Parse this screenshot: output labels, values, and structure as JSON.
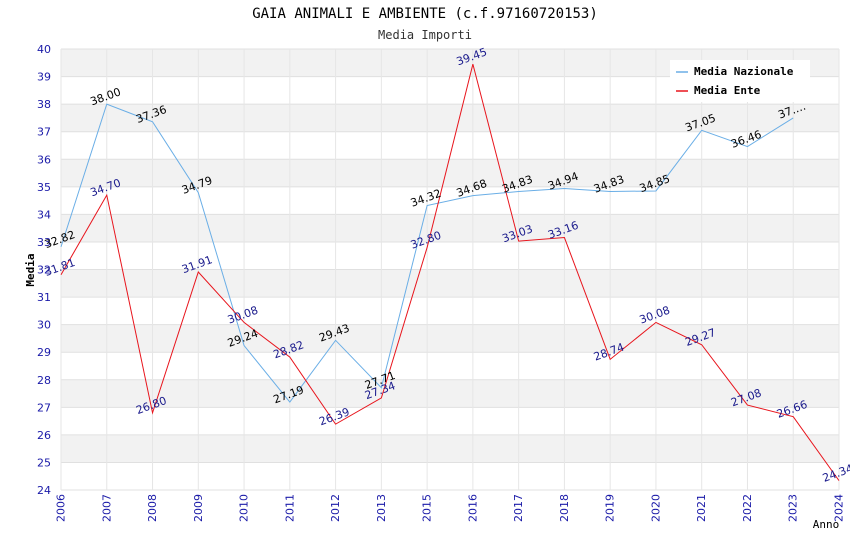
{
  "chart_data": {
    "type": "line",
    "title": "GAIA ANIMALI E AMBIENTE (c.f.97160720153)",
    "subtitle": "Media Importi",
    "xlabel": "Anno",
    "ylabel": "Media",
    "ylim": [
      24,
      40
    ],
    "yticks": [
      "24",
      "25",
      "26",
      "27",
      "28",
      "29",
      "30",
      "31",
      "32",
      "33",
      "34",
      "35",
      "36",
      "37",
      "38",
      "39",
      "40"
    ],
    "categories": [
      "2006",
      "2007",
      "2008",
      "2009",
      "2010",
      "2011",
      "2012",
      "2013",
      "2015",
      "2016",
      "2017",
      "2018",
      "2019",
      "2020",
      "2021",
      "2022",
      "2023",
      "2024"
    ],
    "grid": true,
    "legend_position": "top-right",
    "series": [
      {
        "name": "Media Nazionale",
        "color": "#6aaee6",
        "label_color": "#000000",
        "values": [
          32.82,
          38.0,
          37.36,
          34.79,
          29.24,
          27.19,
          29.43,
          27.71,
          34.32,
          34.68,
          34.83,
          34.94,
          34.83,
          34.85,
          37.05,
          36.46,
          37.5,
          null
        ],
        "labels": [
          "32.82",
          "38.00",
          "37.36",
          "34.79",
          "29.24",
          "27.19",
          "29.43",
          "27.71",
          "34.32",
          "34.68",
          "34.83",
          "34.94",
          "34.83",
          "34.85",
          "37.05",
          "36.46",
          "37.…",
          ""
        ]
      },
      {
        "name": "Media Ente",
        "color": "#e8141c",
        "label_color": "#1a1a8c",
        "values": [
          31.81,
          34.7,
          26.8,
          31.91,
          30.08,
          28.82,
          26.39,
          27.34,
          32.8,
          39.45,
          33.03,
          33.16,
          28.74,
          30.08,
          29.27,
          27.08,
          26.66,
          24.34
        ],
        "labels": [
          "31.81",
          "34.70",
          "26.80",
          "31.91",
          "30.08",
          "28.82",
          "26.39",
          "27.34",
          "32.80",
          "39.45",
          "33.03",
          "33.16",
          "28.74",
          "30.08",
          "29.27",
          "27.08",
          "26.66",
          "24.34"
        ]
      }
    ]
  }
}
